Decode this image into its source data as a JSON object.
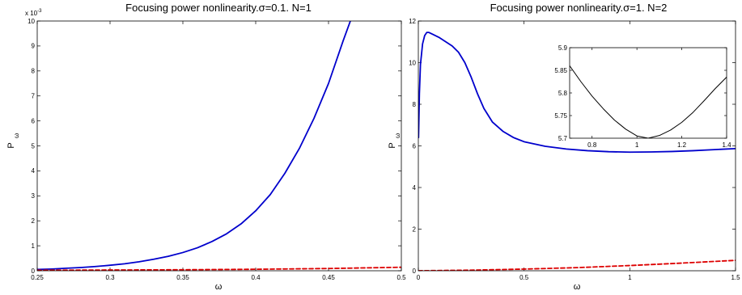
{
  "chart_data": [
    {
      "type": "line",
      "title": "Focusing power nonlinearity.σ=0.1. N=1",
      "xlabel": "ω",
      "ylabel": "P",
      "ylabel_sub": "ω",
      "exponent_label": "x 10",
      "exponent_power": "-3",
      "xlim": [
        0.25,
        0.5
      ],
      "ylim": [
        0,
        10
      ],
      "xticks": [
        0.25,
        0.3,
        0.35,
        0.4,
        0.45,
        0.5
      ],
      "xtick_labels": [
        "0.25",
        "0.3",
        "0.35",
        "0.4",
        "0.45",
        "0.5"
      ],
      "yticks": [
        0,
        1,
        2,
        3,
        4,
        5,
        6,
        7,
        8,
        9,
        10
      ],
      "ytick_labels": [
        "0",
        "1",
        "2",
        "3",
        "4",
        "5",
        "6",
        "7",
        "8",
        "9",
        "10"
      ],
      "grid": false,
      "series": [
        {
          "color": "#0000cc",
          "dash": "solid",
          "x": [
            0.25,
            0.26,
            0.27,
            0.28,
            0.29,
            0.3,
            0.31,
            0.32,
            0.33,
            0.34,
            0.35,
            0.36,
            0.37,
            0.38,
            0.39,
            0.4,
            0.41,
            0.42,
            0.43,
            0.44,
            0.45,
            0.46,
            0.465
          ],
          "y": [
            0.05,
            0.07,
            0.1,
            0.13,
            0.17,
            0.22,
            0.28,
            0.36,
            0.46,
            0.58,
            0.73,
            0.92,
            1.17,
            1.48,
            1.88,
            2.4,
            3.05,
            3.9,
            4.9,
            6.1,
            7.5,
            9.2,
            10.0
          ]
        },
        {
          "color": "#dd0000",
          "dash": "dashed",
          "x": [
            0.25,
            0.3,
            0.35,
            0.4,
            0.45,
            0.5
          ],
          "y": [
            0.02,
            0.03,
            0.04,
            0.06,
            0.09,
            0.14
          ]
        }
      ]
    },
    {
      "type": "line",
      "title": "Focusing power nonlinearity.σ=1. N=2",
      "xlabel": "ω",
      "ylabel": "P",
      "ylabel_sub": "ω",
      "xlim": [
        0,
        1.5
      ],
      "ylim": [
        0,
        12
      ],
      "xticks": [
        0,
        0.5,
        1,
        1.5
      ],
      "xtick_labels": [
        "0",
        "0.5",
        "1",
        "1.5"
      ],
      "yticks": [
        0,
        2,
        4,
        6,
        8,
        10,
        12
      ],
      "ytick_labels": [
        "0",
        "2",
        "4",
        "6",
        "8",
        "10",
        "12"
      ],
      "grid": false,
      "series": [
        {
          "color": "#0000cc",
          "dash": "solid",
          "x": [
            0.001,
            0.005,
            0.01,
            0.02,
            0.03,
            0.04,
            0.05,
            0.07,
            0.1,
            0.13,
            0.16,
            0.19,
            0.22,
            0.25,
            0.28,
            0.31,
            0.35,
            0.4,
            0.45,
            0.5,
            0.6,
            0.7,
            0.8,
            0.9,
            1.0,
            1.1,
            1.2,
            1.3,
            1.4,
            1.5
          ],
          "y": [
            6.4,
            8.5,
            9.9,
            10.9,
            11.3,
            11.45,
            11.45,
            11.35,
            11.2,
            11.0,
            10.8,
            10.5,
            10.0,
            9.3,
            8.5,
            7.8,
            7.15,
            6.7,
            6.4,
            6.2,
            5.98,
            5.85,
            5.77,
            5.72,
            5.7,
            5.71,
            5.73,
            5.77,
            5.82,
            5.87
          ]
        },
        {
          "color": "#dd0000",
          "dash": "dashed",
          "x": [
            0,
            0.25,
            0.5,
            0.75,
            1.0,
            1.25,
            1.5
          ],
          "y": [
            0.0,
            0.03,
            0.08,
            0.15,
            0.25,
            0.37,
            0.5
          ]
        }
      ],
      "inset": {
        "xlim": [
          0.7,
          1.4
        ],
        "ylim": [
          5.7,
          5.9
        ],
        "xticks": [
          0.8,
          1,
          1.2,
          1.4
        ],
        "xtick_labels": [
          "0.8",
          "1",
          "1.2",
          "1.4"
        ],
        "yticks": [
          5.7,
          5.75,
          5.8,
          5.85,
          5.9
        ],
        "ytick_labels": [
          "5.7",
          "5.75",
          "5.8",
          "5.85",
          "5.9"
        ],
        "series": [
          {
            "color": "#000000",
            "dash": "solid",
            "x": [
              0.7,
              0.75,
              0.8,
              0.85,
              0.9,
              0.95,
              1.0,
              1.05,
              1.1,
              1.15,
              1.2,
              1.25,
              1.3,
              1.35,
              1.4
            ],
            "y": [
              5.86,
              5.825,
              5.793,
              5.765,
              5.74,
              5.72,
              5.705,
              5.7,
              5.706,
              5.718,
              5.735,
              5.757,
              5.783,
              5.81,
              5.835
            ]
          }
        ]
      }
    }
  ]
}
